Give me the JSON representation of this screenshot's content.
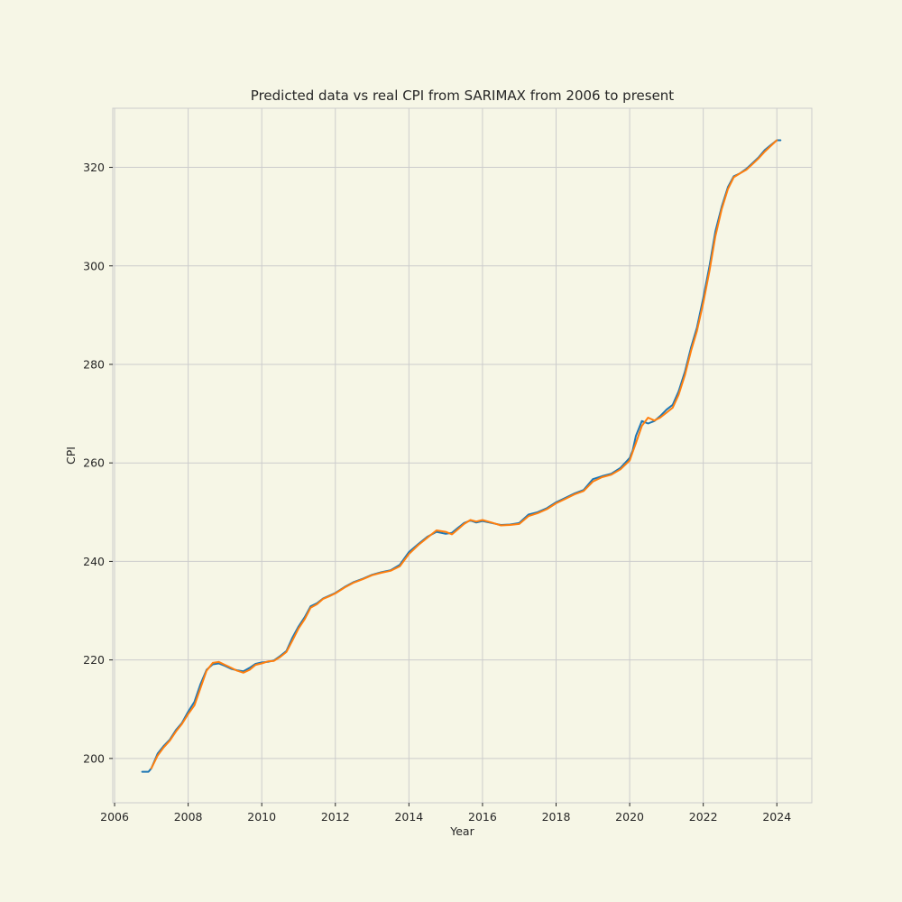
{
  "chart_data": {
    "type": "line",
    "title": "Predicted data vs real CPI from SARIMAX from 2006 to present",
    "xlabel": "Year",
    "ylabel": "CPI",
    "xlim": [
      2005.95,
      2024.95
    ],
    "ylim": [
      191,
      332
    ],
    "xticks": [
      2006,
      2008,
      2010,
      2012,
      2014,
      2016,
      2018,
      2020,
      2022,
      2024
    ],
    "yticks": [
      200,
      220,
      240,
      260,
      280,
      300,
      320
    ],
    "grid": true,
    "legend": "none",
    "colors": {
      "real": "#1f77b4",
      "predicted": "#ff7f0e",
      "background": "#f6f6e6"
    },
    "series": [
      {
        "key": "real",
        "x": [
          2006.75,
          2006.92,
          2007.0,
          2007.17,
          2007.33,
          2007.5,
          2007.67,
          2007.83,
          2008.0,
          2008.17,
          2008.33,
          2008.5,
          2008.67,
          2008.83,
          2009.0,
          2009.17,
          2009.33,
          2009.5,
          2009.67,
          2009.83,
          2010.0,
          2010.17,
          2010.33,
          2010.5,
          2010.67,
          2010.83,
          2011.0,
          2011.17,
          2011.33,
          2011.5,
          2011.67,
          2011.83,
          2012.0,
          2012.25,
          2012.5,
          2012.75,
          2013.0,
          2013.25,
          2013.5,
          2013.75,
          2014.0,
          2014.25,
          2014.5,
          2014.75,
          2015.0,
          2015.17,
          2015.33,
          2015.5,
          2015.67,
          2015.83,
          2016.0,
          2016.25,
          2016.5,
          2016.75,
          2017.0,
          2017.25,
          2017.5,
          2017.75,
          2018.0,
          2018.25,
          2018.5,
          2018.75,
          2019.0,
          2019.25,
          2019.5,
          2019.75,
          2020.0,
          2020.08,
          2020.17,
          2020.33,
          2020.5,
          2020.67,
          2020.83,
          2021.0,
          2021.17,
          2021.33,
          2021.5,
          2021.67,
          2021.83,
          2022.0,
          2022.17,
          2022.33,
          2022.5,
          2022.67,
          2022.83,
          2023.0,
          2023.17,
          2023.33,
          2023.5,
          2023.67,
          2023.83,
          2024.0,
          2024.1
        ],
        "y": [
          197.3,
          197.3,
          198.0,
          201.0,
          202.5,
          203.8,
          205.8,
          207.2,
          209.5,
          211.5,
          215.0,
          218.0,
          219.1,
          219.3,
          218.8,
          218.2,
          217.9,
          217.7,
          218.4,
          219.2,
          219.5,
          219.6,
          219.9,
          220.8,
          221.8,
          224.5,
          226.8,
          228.7,
          230.9,
          231.5,
          232.5,
          233.0,
          233.6,
          234.8,
          235.8,
          236.5,
          237.3,
          237.8,
          238.2,
          239.3,
          241.9,
          243.5,
          245.0,
          246.0,
          245.6,
          245.8,
          246.8,
          247.8,
          248.3,
          247.9,
          248.2,
          247.8,
          247.4,
          247.5,
          247.8,
          249.5,
          250.0,
          250.8,
          252.0,
          252.9,
          253.8,
          254.5,
          256.7,
          257.3,
          257.8,
          259.0,
          261.0,
          262.5,
          265.5,
          268.5,
          268.0,
          268.5,
          269.5,
          270.8,
          271.8,
          274.5,
          278.5,
          283.5,
          287.5,
          293.5,
          300.0,
          307.0,
          312.0,
          316.0,
          318.2,
          318.8,
          319.7,
          320.8,
          322.0,
          323.5,
          324.5,
          325.5,
          325.5
        ]
      },
      {
        "key": "predicted",
        "x": [
          2007.0,
          2007.17,
          2007.33,
          2007.5,
          2007.67,
          2007.83,
          2008.0,
          2008.17,
          2008.33,
          2008.5,
          2008.67,
          2008.83,
          2009.0,
          2009.17,
          2009.33,
          2009.5,
          2009.67,
          2009.83,
          2010.0,
          2010.17,
          2010.33,
          2010.5,
          2010.67,
          2010.83,
          2011.0,
          2011.17,
          2011.33,
          2011.5,
          2011.67,
          2011.83,
          2012.0,
          2012.25,
          2012.5,
          2012.75,
          2013.0,
          2013.25,
          2013.5,
          2013.75,
          2014.0,
          2014.25,
          2014.5,
          2014.75,
          2015.0,
          2015.17,
          2015.33,
          2015.5,
          2015.67,
          2015.83,
          2016.0,
          2016.25,
          2016.5,
          2016.75,
          2017.0,
          2017.25,
          2017.5,
          2017.75,
          2018.0,
          2018.25,
          2018.5,
          2018.75,
          2019.0,
          2019.25,
          2019.5,
          2019.75,
          2020.0,
          2020.08,
          2020.17,
          2020.33,
          2020.5,
          2020.67,
          2020.83,
          2021.0,
          2021.17,
          2021.33,
          2021.5,
          2021.67,
          2021.83,
          2022.0,
          2022.17,
          2022.33,
          2022.5,
          2022.67,
          2022.83,
          2023.0,
          2023.17,
          2023.33,
          2023.5,
          2023.67,
          2023.83,
          2024.0
        ],
        "y": [
          198.0,
          200.6,
          202.2,
          203.6,
          205.5,
          207.0,
          209.0,
          210.8,
          214.2,
          217.8,
          219.4,
          219.6,
          219.0,
          218.4,
          217.8,
          217.4,
          218.0,
          219.0,
          219.3,
          219.7,
          219.8,
          220.6,
          221.6,
          223.9,
          226.4,
          228.3,
          230.6,
          231.3,
          232.4,
          232.9,
          233.5,
          234.7,
          235.7,
          236.4,
          237.2,
          237.7,
          238.1,
          239.0,
          241.5,
          243.3,
          244.8,
          246.3,
          246.0,
          245.5,
          246.5,
          247.6,
          248.4,
          248.1,
          248.4,
          247.9,
          247.3,
          247.4,
          247.6,
          249.2,
          249.8,
          250.6,
          251.8,
          252.7,
          253.6,
          254.3,
          256.2,
          257.1,
          257.6,
          258.7,
          260.5,
          262.2,
          264.0,
          267.5,
          269.2,
          268.6,
          269.2,
          270.2,
          271.2,
          273.8,
          277.8,
          282.8,
          286.8,
          292.5,
          299.0,
          306.0,
          311.5,
          315.6,
          318.0,
          318.8,
          319.5,
          320.6,
          321.8,
          323.2,
          324.3,
          325.5
        ]
      }
    ]
  }
}
